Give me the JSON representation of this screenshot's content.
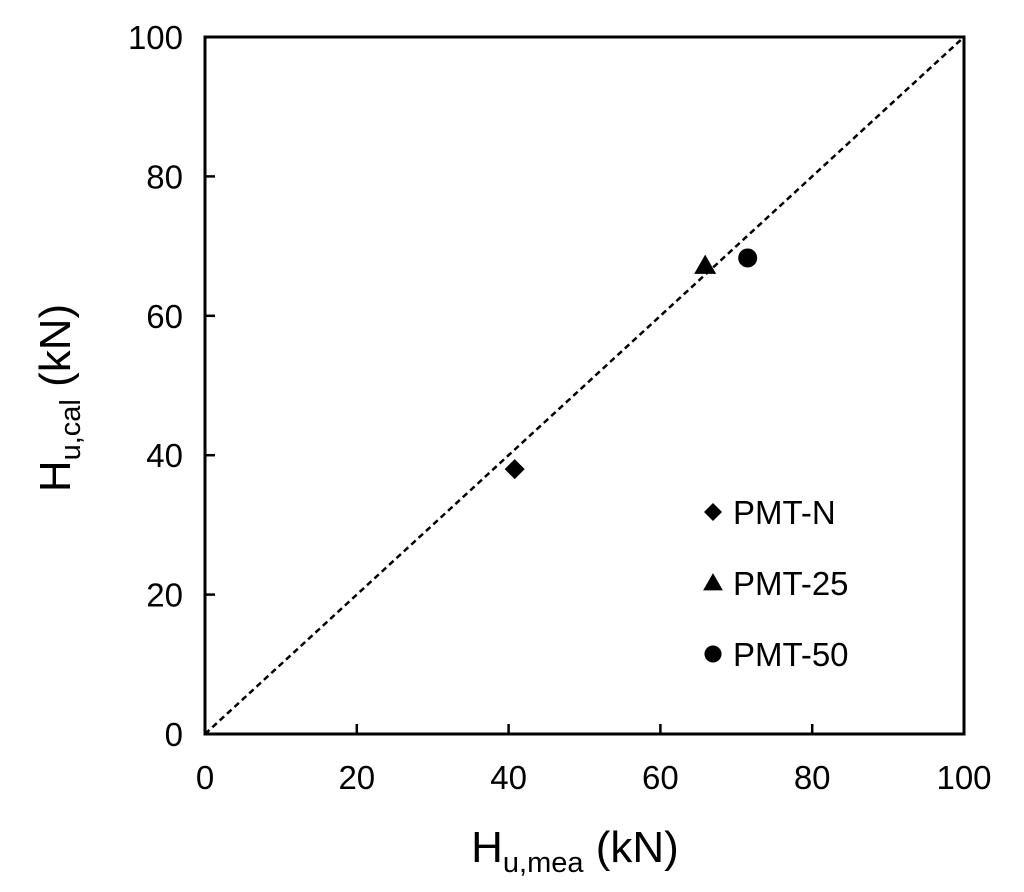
{
  "chart_data": {
    "type": "scatter",
    "title": "",
    "xlabel": {
      "main": "H",
      "sub": "u,mea",
      "unit": " (kN)"
    },
    "ylabel": {
      "main": "H",
      "sub": "u,cal",
      "unit": " (kN)"
    },
    "xlim": [
      0,
      100
    ],
    "ylim": [
      0,
      100
    ],
    "xticks": [
      0,
      20,
      40,
      60,
      80,
      100
    ],
    "yticks": [
      0,
      20,
      40,
      60,
      80,
      100
    ],
    "xtick_labels": [
      "0",
      "20",
      "40",
      "60",
      "80",
      "100"
    ],
    "ytick_labels": [
      "0",
      "20",
      "40",
      "60",
      "80",
      "100"
    ],
    "grid": false,
    "legend_position": "bottom-right",
    "reference_line": {
      "style": "dashed",
      "from": [
        0,
        0
      ],
      "to": [
        100,
        100
      ]
    },
    "series": [
      {
        "name": "PMT-N",
        "marker": "diamond",
        "points": [
          {
            "x": 40.8,
            "y": 38.0
          }
        ]
      },
      {
        "name": "PMT-25",
        "marker": "triangle",
        "points": [
          {
            "x": 65.9,
            "y": 67.2
          }
        ]
      },
      {
        "name": "PMT-50",
        "marker": "circle",
        "points": [
          {
            "x": 71.5,
            "y": 68.3
          }
        ]
      }
    ],
    "colors": {
      "marker": "#000000",
      "line": "#000000"
    }
  }
}
